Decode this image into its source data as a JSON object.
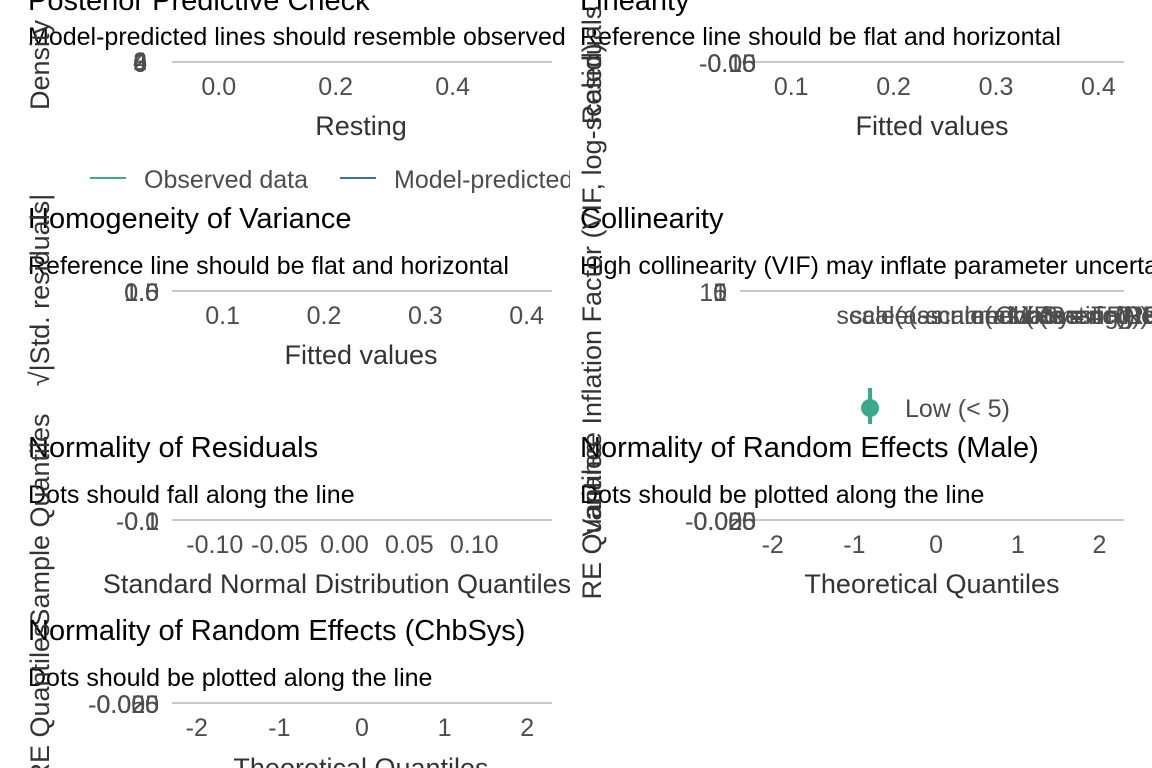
{
  "chart_data": [
    {
      "id": "ppc",
      "type": "line",
      "title": "Posterior Predictive Check",
      "subtitle": "Model-predicted lines should resemble observed data line",
      "xlabel": "Resting",
      "ylabel": "Density",
      "x_ticks": [
        "0.0",
        "0.2",
        "0.4"
      ],
      "x_tick_values": [
        0.0,
        0.2,
        0.4
      ],
      "xlim": [
        -0.08,
        0.57
      ],
      "y_ticks": [
        "0",
        "2",
        "4",
        "6"
      ],
      "legend": {
        "position": "bottom",
        "entries": [
          {
            "label": "Observed data",
            "color": "#3aaa8a"
          },
          {
            "label": "Model-predicted data",
            "color": "#3a6fa8"
          }
        ]
      }
    },
    {
      "id": "linearity",
      "type": "scatter",
      "title": "Linearity",
      "subtitle": "Reference line should be flat and horizontal",
      "xlabel": "Fitted values",
      "ylabel": "Residuals",
      "x_ticks": [
        "0.1",
        "0.2",
        "0.3",
        "0.4"
      ],
      "x_tick_values": [
        0.1,
        0.2,
        0.3,
        0.4
      ],
      "xlim": [
        0.05,
        0.425
      ],
      "y_ticks": [
        "-0.10",
        "-0.05",
        "0.00",
        "0.05"
      ]
    },
    {
      "id": "homogeneity",
      "type": "scatter",
      "title": "Homogeneity of Variance",
      "subtitle": "Reference line should be flat and horizontal",
      "xlabel": "Fitted values",
      "ylabel": "√|Std. residuals|",
      "x_ticks": [
        "0.1",
        "0.2",
        "0.3",
        "0.4"
      ],
      "x_tick_values": [
        0.1,
        0.2,
        0.3,
        0.4
      ],
      "xlim": [
        0.05,
        0.425
      ],
      "y_ticks": [
        "0.0",
        "0.5",
        "1.0",
        "1.5"
      ]
    },
    {
      "id": "collinearity",
      "type": "scatter",
      "title": "Collinearity",
      "subtitle": "High collinearity (VIF) may inflate parameter uncertainty",
      "xlabel": "",
      "ylabel": "Variance Inflation Factor (VIF, log-scaled)",
      "x_ticks": [
        "scale(as.numeric(Resting))",
        "scale(as.numeric(Resting)):Male = TRUE",
        "scale(as.numeric(Resting)):ChbSys = TRUE",
        "Male = TRUE",
        "ChbSys = TRUE"
      ],
      "y_ticks": [
        "1",
        "5",
        "10"
      ],
      "legend": {
        "position": "bottom",
        "entries": [
          {
            "label": "Low (< 5)",
            "color": "#3aaa8a"
          }
        ]
      }
    },
    {
      "id": "normality_residuals",
      "type": "scatter",
      "title": "Normality of Residuals",
      "subtitle": "Dots should fall along the line",
      "xlabel": "Standard Normal Distribution Quantiles",
      "ylabel": "Sample Quantiles",
      "x_ticks": [
        "-0.10",
        "-0.05",
        "0.00",
        "0.05",
        "0.10"
      ],
      "x_tick_values": [
        -0.1,
        -0.05,
        0.0,
        0.05,
        0.1
      ],
      "xlim": [
        -0.133,
        0.16
      ],
      "y_ticks": [
        "-0.1",
        "0.0",
        "0.1"
      ]
    },
    {
      "id": "re_male",
      "type": "scatter",
      "title": "Normality of Random Effects (Male)",
      "subtitle": "Dots should be plotted along the line",
      "xlabel": "Theoretical Quantiles",
      "ylabel": "RE Quantiles",
      "x_ticks": [
        "-2",
        "-1",
        "0",
        "1",
        "2"
      ],
      "x_tick_values": [
        -2,
        -1,
        0,
        1,
        2
      ],
      "xlim": [
        -2.4,
        2.3
      ],
      "y_ticks": [
        "-0.050",
        "-0.025",
        "0.000",
        "0.025"
      ]
    },
    {
      "id": "re_chbsys",
      "type": "scatter",
      "title": "Normality of Random Effects (ChbSys)",
      "subtitle": "Dots should be plotted along the line",
      "xlabel": "Theoretical Quantiles",
      "ylabel": "RE Quantiles",
      "x_ticks": [
        "-2",
        "-1",
        "0",
        "1",
        "2"
      ],
      "x_tick_values": [
        -2,
        -1,
        0,
        1,
        2
      ],
      "xlim": [
        -2.3,
        2.3
      ],
      "y_ticks": [
        "-0.050",
        "-0.025",
        "0.000",
        "0.025"
      ]
    }
  ]
}
